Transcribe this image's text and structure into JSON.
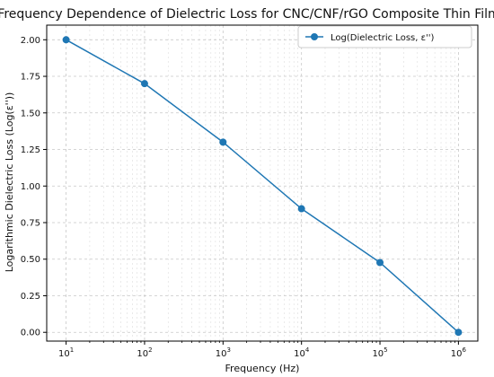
{
  "chart_data": {
    "type": "line",
    "title": "Frequency Dependence of Dielectric Loss for CNC/CNF/rGO Composite Thin Film",
    "xlabel": "Frequency (Hz)",
    "ylabel": "Logarithmic Dielectric Loss (Log(ε''))",
    "x_scale": "log",
    "xlim": [
      10,
      1000000
    ],
    "ylim": [
      -0.06,
      2.1
    ],
    "x_ticks": [
      {
        "value": 10,
        "base": "10",
        "exp": "1"
      },
      {
        "value": 100,
        "base": "10",
        "exp": "2"
      },
      {
        "value": 1000,
        "base": "10",
        "exp": "3"
      },
      {
        "value": 10000,
        "base": "10",
        "exp": "4"
      },
      {
        "value": 100000,
        "base": "10",
        "exp": "5"
      },
      {
        "value": 1000000,
        "base": "10",
        "exp": "6"
      }
    ],
    "y_ticks": [
      "0.00",
      "0.25",
      "0.50",
      "0.75",
      "1.00",
      "1.25",
      "1.50",
      "1.75",
      "2.00"
    ],
    "grid": true,
    "legend_position": "top-right",
    "series": [
      {
        "name": "Log(Dielectric Loss, ε'')",
        "color": "#1f77b4",
        "x": [
          10,
          100,
          1000,
          10000,
          100000,
          1000000
        ],
        "y": [
          2.0,
          1.7,
          1.3,
          0.845,
          0.477,
          0.0
        ]
      }
    ]
  }
}
